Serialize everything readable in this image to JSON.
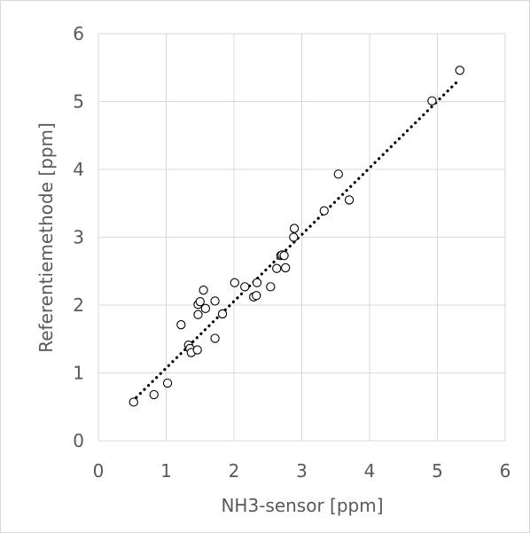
{
  "chart_data": {
    "type": "scatter",
    "title": "",
    "xlabel": "NH3-sensor [ppm]",
    "ylabel": "Referentiemethode [ppm]",
    "xlim": [
      0,
      6
    ],
    "ylim": [
      0,
      6
    ],
    "xticks": [
      "0",
      "1",
      "2",
      "3",
      "4",
      "5",
      "6"
    ],
    "yticks": [
      "0",
      "1",
      "2",
      "3",
      "4",
      "5",
      "6"
    ],
    "grid": true,
    "legend": "none",
    "colors": {
      "gridline": "#d9d9d9",
      "marker": "#000000",
      "text": "#595959"
    },
    "series": [
      {
        "marker": "open-circle",
        "points": [
          [
            0.52,
            0.57
          ],
          [
            0.82,
            0.68
          ],
          [
            1.02,
            0.85
          ],
          [
            1.22,
            1.71
          ],
          [
            1.33,
            1.41
          ],
          [
            1.35,
            1.36
          ],
          [
            1.37,
            1.3
          ],
          [
            1.46,
            1.34
          ],
          [
            1.47,
            1.86
          ],
          [
            1.47,
            2.01
          ],
          [
            1.5,
            2.05
          ],
          [
            1.55,
            2.22
          ],
          [
            1.58,
            1.95
          ],
          [
            1.72,
            1.51
          ],
          [
            1.72,
            2.06
          ],
          [
            1.83,
            1.87
          ],
          [
            2.01,
            2.33
          ],
          [
            2.16,
            2.27
          ],
          [
            2.29,
            2.12
          ],
          [
            2.33,
            2.14
          ],
          [
            2.34,
            2.33
          ],
          [
            2.54,
            2.27
          ],
          [
            2.63,
            2.54
          ],
          [
            2.69,
            2.73
          ],
          [
            2.71,
            2.74
          ],
          [
            2.74,
            2.73
          ],
          [
            2.76,
            2.55
          ],
          [
            2.88,
            3.0
          ],
          [
            2.89,
            3.13
          ],
          [
            3.33,
            3.39
          ],
          [
            3.54,
            3.93
          ],
          [
            3.7,
            3.55
          ],
          [
            4.92,
            5.01
          ],
          [
            5.33,
            5.46
          ]
        ]
      }
    ],
    "trendline": {
      "type": "linear",
      "style": "dotted",
      "x": [
        0.5,
        5.33
      ],
      "y": [
        0.58,
        5.33
      ]
    }
  }
}
